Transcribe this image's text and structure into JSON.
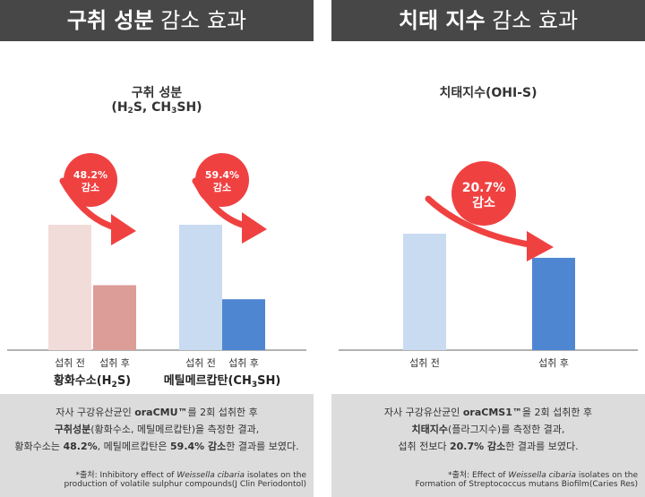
{
  "left": {
    "header_bold": "구취 성분",
    "header_light": "감소 효과",
    "chart_title_line1": "구취 성분",
    "chart_title_line2_prefix": "(H",
    "chart_title_line2_sub1": "2",
    "chart_title_line2_mid": "S, CH",
    "chart_title_line2_sub2": "3",
    "chart_title_line2_suffix": "SH)",
    "info_line1_pre": "자사 구강유산균인 ",
    "info_line1_bold": "oraCMU™",
    "info_line1_post": "를 2회 섭취한 후",
    "info_line2_bold": "구취성분",
    "info_line2_post": "(황화수소, 메틸메르캅탄)을 측정한 결과,",
    "info_line3_pre": "황화수소는 ",
    "info_line3_bold1": "48.2%",
    "info_line3_mid": ", 메틸메르캅탄은 ",
    "info_line3_bold2": "59.4% 감소",
    "info_line3_post": "한 결과를 보였다.",
    "source_line1_pre": "*출처: Inhibitory effect of ",
    "source_line1_italic": "Weissella cibaria",
    "source_line1_post": " isolates on the",
    "source_line2": "production of volatile sulphur compounds(J Clin Periodontol)"
  },
  "right": {
    "header_bold": "치태 지수",
    "header_light": "감소 효과",
    "chart_title": "치태지수(OHI-S)",
    "info_line1_pre": "자사 구강유산균인 ",
    "info_line1_bold": "oraCMS1™",
    "info_line1_post": "을 2회 섭취한 후",
    "info_line2_bold": "치태지수",
    "info_line2_post": "(플라그지수)를 측정한 결과,",
    "info_line3_pre": "섭취 전보다 ",
    "info_line3_bold": "20.7% 감소",
    "info_line3_post": "한 결과를 보였다.",
    "source_line1_pre": "*출처: Effect of ",
    "source_line1_italic": "Weissella cibaria",
    "source_line1_post": " isolates on the",
    "source_line2": "Formation of Streptococcus mutans Biofilm(Caries Res)"
  },
  "colors": {
    "header_bg": "#474747",
    "info_bg": "#dcdcdc",
    "h2s_before": "#f2dcda",
    "h2s_after": "#dc9c97",
    "ch3sh_before": "#c9dbf1",
    "ch3sh_after": "#4f86d2",
    "plaque_before": "#c9dbf1",
    "plaque_after": "#4f86d2",
    "badge": "#f04141",
    "arrow": "#f04141"
  },
  "chart_data": [
    {
      "type": "bar",
      "groups": [
        {
          "name": "황화수소(H2S)",
          "name_prefix": "황화수소(H",
          "name_sub": "2",
          "name_suffix": "S)",
          "categories": [
            "섭취 전",
            "섭취 후"
          ],
          "values": [
            100,
            51.8
          ],
          "badge_line1": "48.2%",
          "badge_line2": "감소"
        },
        {
          "name": "메틸메르캅탄(CH3SH)",
          "name_prefix": "메틸메르캅탄(CH",
          "name_sub": "3",
          "name_suffix": "SH)",
          "categories": [
            "섭취 전",
            "섭취 후"
          ],
          "values": [
            100,
            40.6
          ],
          "badge_line1": "59.4%",
          "badge_line2": "감소"
        }
      ],
      "ylim": [
        0,
        100
      ]
    },
    {
      "type": "bar",
      "categories": [
        "섭취 전",
        "섭취 후"
      ],
      "values": [
        100,
        79.3
      ],
      "badge_line1": "20.7%",
      "badge_line2": "감소",
      "ylim": [
        0,
        100
      ]
    }
  ]
}
